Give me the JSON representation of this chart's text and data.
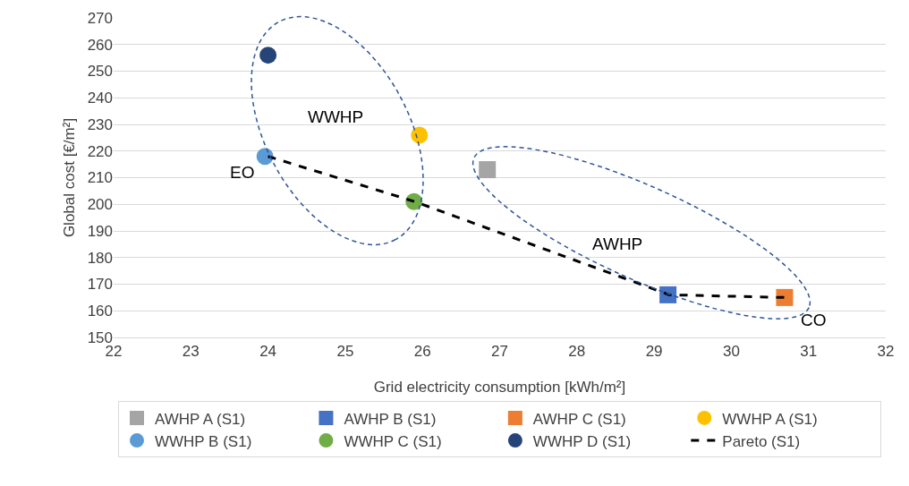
{
  "chart_data": {
    "type": "scatter",
    "xlabel": "Grid electricity consumption [kWh/m²]",
    "ylabel": "Global cost [€/m²]",
    "xlim": [
      22,
      32
    ],
    "xticks": [
      22,
      23,
      24,
      25,
      26,
      27,
      28,
      29,
      30,
      31,
      32
    ],
    "ylim": [
      150,
      270
    ],
    "yticks": [
      150,
      160,
      170,
      180,
      190,
      200,
      210,
      220,
      230,
      240,
      250,
      260,
      270
    ],
    "grid": "y",
    "legend": "bottom",
    "series": [
      {
        "name": "AWHP A (S1)",
        "color": "#a5a5a5",
        "marker": "square",
        "x": [
          26.84
        ],
        "values": [
          213
        ]
      },
      {
        "name": "AWHP B (S1)",
        "color": "#4472c4",
        "marker": "square",
        "x": [
          29.18
        ],
        "values": [
          166
        ]
      },
      {
        "name": "AWHP C (S1)",
        "color": "#ed7d31",
        "marker": "square",
        "x": [
          30.69
        ],
        "values": [
          165
        ]
      },
      {
        "name": "WWHP A (S1)",
        "color": "#ffc000",
        "marker": "circle",
        "x": [
          25.96
        ],
        "values": [
          226
        ]
      },
      {
        "name": "WWHP B (S1)",
        "color": "#5b9bd5",
        "marker": "circle",
        "x": [
          23.96
        ],
        "values": [
          218
        ]
      },
      {
        "name": "WWHP C (S1)",
        "color": "#70ad47",
        "marker": "circle",
        "x": [
          25.89
        ],
        "values": [
          201
        ]
      },
      {
        "name": "WWHP D (S1)",
        "color": "#264478",
        "marker": "circle",
        "x": [
          24.0
        ],
        "values": [
          256
        ]
      },
      {
        "name": "Pareto (S1)",
        "type": "line",
        "color": "#000000",
        "marker": "none",
        "line_style": "dashed",
        "x": [
          24.0,
          25.9,
          29.2,
          30.7
        ],
        "values": [
          218,
          201,
          166,
          165
        ]
      }
    ],
    "annotations": [
      "WWHP",
      "EO",
      "AWHP",
      "CO"
    ]
  }
}
